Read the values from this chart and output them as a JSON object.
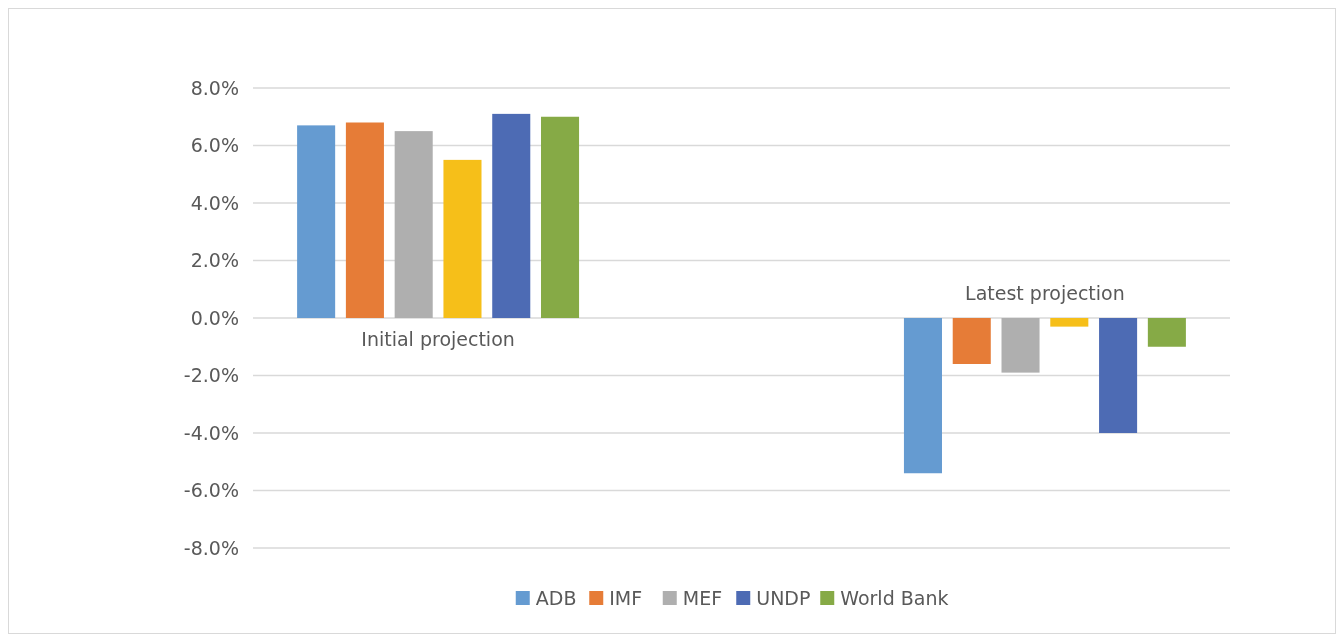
{
  "chart_data": {
    "type": "bar",
    "categories": [
      "Initial projection",
      "Latest projection"
    ],
    "series": [
      {
        "name": "ADB",
        "color": "#659bd1",
        "values": [
          6.7,
          -5.4
        ]
      },
      {
        "name": "IMF",
        "color": "#e67c37",
        "values": [
          6.8,
          -1.6
        ]
      },
      {
        "name": "MEF",
        "color": "#afafaf",
        "values": [
          6.5,
          -1.9
        ]
      },
      {
        "color": "#f6bf19",
        "values": [
          5.5,
          -0.3
        ]
      },
      {
        "name": "UNDP",
        "color": "#4d6bb4",
        "values": [
          7.1,
          -4.0
        ]
      },
      {
        "name": "World Bank",
        "color": "#86aa46",
        "values": [
          7.0,
          -1.0
        ]
      }
    ],
    "ylim": [
      -8,
      8
    ],
    "yticks": [
      {
        "value": -8,
        "label": "-8.0%"
      },
      {
        "value": -6,
        "label": "-6.0%"
      },
      {
        "value": -4,
        "label": "-4.0%"
      },
      {
        "value": -2,
        "label": "-2.0%"
      },
      {
        "value": 0,
        "label": "0.0%"
      },
      {
        "value": 2,
        "label": "2.0%"
      },
      {
        "value": 4,
        "label": "4.0%"
      },
      {
        "value": 6,
        "label": "6.0%"
      },
      {
        "value": 8,
        "label": "8.0%"
      }
    ],
    "grid": "y",
    "legend": "bottom"
  }
}
